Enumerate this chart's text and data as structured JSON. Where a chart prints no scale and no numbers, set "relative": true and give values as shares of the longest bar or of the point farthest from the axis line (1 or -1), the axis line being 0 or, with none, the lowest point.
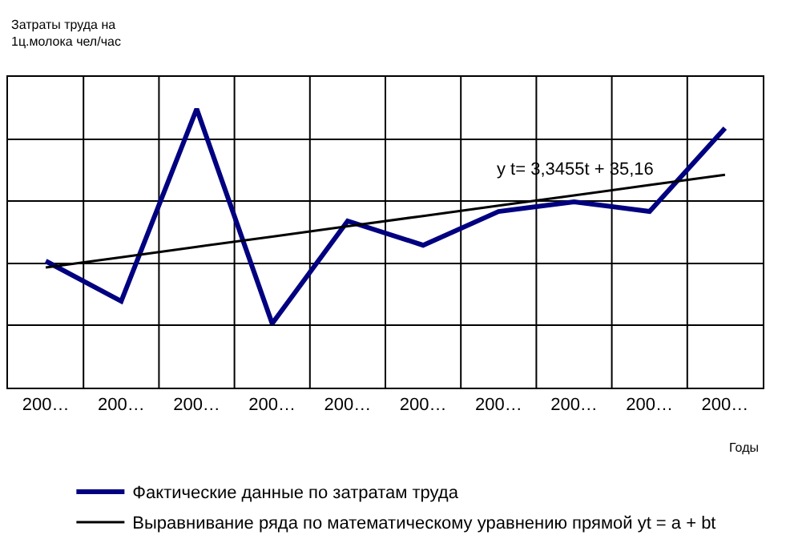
{
  "chart_data": {
    "type": "line",
    "relative": true,
    "ylabel": "Затраты труда на\n1ц.молока чел/час",
    "xlabel": "Годы",
    "categories": [
      "200…",
      "200…",
      "200…",
      "200…",
      "200…",
      "200…",
      "200…",
      "200…",
      "200…",
      "200…"
    ],
    "series": [
      {
        "name": "Фактические данные по затратам труда",
        "color": "#000080",
        "values": [
          0.454,
          0.31,
          1,
          0.23,
          0.598,
          0.511,
          0.632,
          0.667,
          0.632,
          0.931
        ]
      },
      {
        "name": "Выравнивание ряда по математическому уравнению прямой yt = a + bt",
        "color": "#000000",
        "values": [
          0.431,
          0.468,
          0.505,
          0.542,
          0.579,
          0.616,
          0.653,
          0.69,
          0.727,
          0.764
        ]
      }
    ],
    "annotations": [
      "y t= 3,3455t + 35,16"
    ],
    "grid": true,
    "legend": "bottom",
    "marker": "none",
    "line_style": "solid"
  }
}
